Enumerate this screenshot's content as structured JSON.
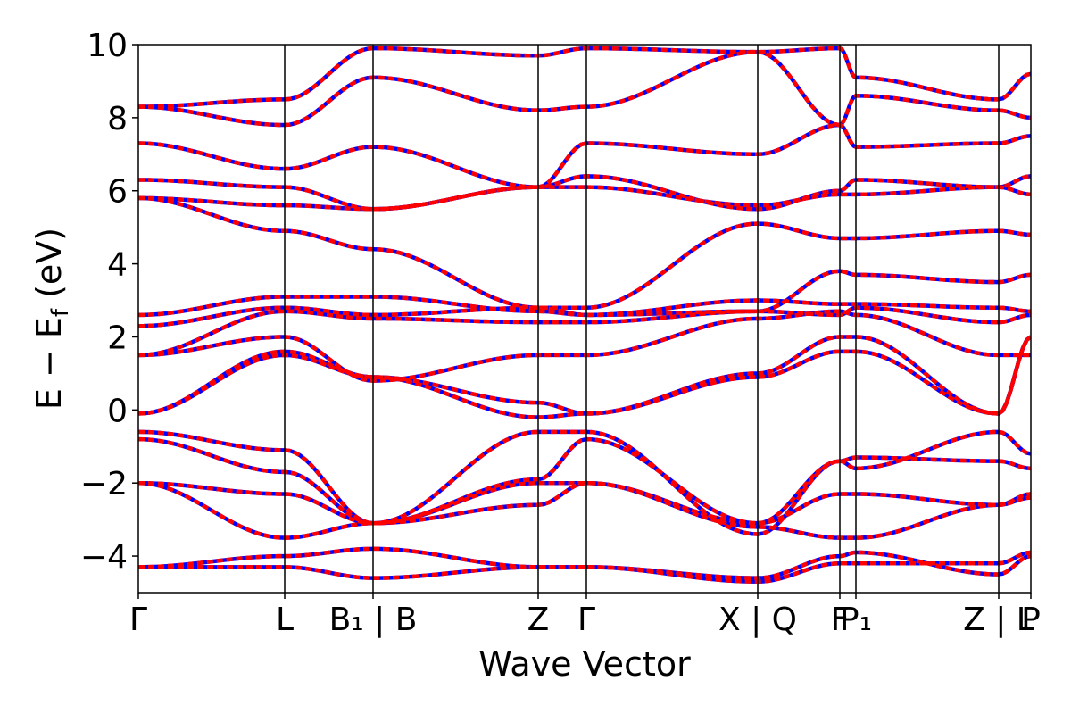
{
  "chart_data": {
    "type": "line",
    "title": "",
    "xlabel": "Wave Vector",
    "ylabel": "E − E",
    "ylabel_sub": "f",
    "ylabel_unit": " (eV)",
    "ylim": [
      -5,
      10
    ],
    "yticks": [
      {
        "value": -4,
        "label": "−4"
      },
      {
        "value": -2,
        "label": "−2"
      },
      {
        "value": 0,
        "label": "0"
      },
      {
        "value": 2,
        "label": "2"
      },
      {
        "value": 4,
        "label": "4"
      },
      {
        "value": 6,
        "label": "6"
      },
      {
        "value": 8,
        "label": "8"
      },
      {
        "value": 10,
        "label": "10"
      }
    ],
    "xlim": [
      0,
      1000
    ],
    "kpoints": [
      {
        "x": 0,
        "label": "Γ"
      },
      {
        "x": 164,
        "label": "L"
      },
      {
        "x": 263,
        "label": "B₁ | B"
      },
      {
        "x": 448,
        "label": "Z"
      },
      {
        "x": 502,
        "label": "Γ"
      },
      {
        "x": 694,
        "label": "X | Q"
      },
      {
        "x": 786,
        "label": "F"
      },
      {
        "x": 804,
        "label": "P₁"
      },
      {
        "x": 964,
        "label": "Z | L"
      },
      {
        "x": 1000,
        "label": "P"
      }
    ],
    "x_label_bounds": [
      0,
      1000
    ],
    "series": [
      {
        "color": "#0000ff",
        "style": "solid",
        "bands": [
          [
            [
              0,
              -4.3
            ],
            [
              164,
              -4.3
            ],
            [
              263,
              -4.6
            ],
            [
              448,
              -4.3
            ],
            [
              502,
              -4.3
            ],
            [
              694,
              -4.7
            ],
            [
              786,
              -4.2
            ],
            [
              804,
              -4.2
            ],
            [
              964,
              -4.2
            ],
            [
              1000,
              -3.9
            ]
          ],
          [
            [
              0,
              -4.3
            ],
            [
              164,
              -4.0
            ],
            [
              263,
              -3.8
            ],
            [
              448,
              -4.3
            ],
            [
              502,
              -4.3
            ],
            [
              694,
              -4.6
            ],
            [
              786,
              -4.0
            ],
            [
              804,
              -3.9
            ],
            [
              964,
              -4.5
            ],
            [
              1000,
              -4.0
            ]
          ],
          [
            [
              0,
              -2.0
            ],
            [
              164,
              -2.3
            ],
            [
              263,
              -3.1
            ],
            [
              448,
              -2.0
            ],
            [
              502,
              -2.0
            ],
            [
              694,
              -3.1
            ],
            [
              786,
              -2.3
            ],
            [
              804,
              -2.3
            ],
            [
              964,
              -2.6
            ],
            [
              1000,
              -2.4
            ]
          ],
          [
            [
              0,
              -2.0
            ],
            [
              164,
              -3.5
            ],
            [
              263,
              -3.1
            ],
            [
              448,
              -2.6
            ],
            [
              502,
              -2.0
            ],
            [
              694,
              -3.2
            ],
            [
              786,
              -3.5
            ],
            [
              804,
              -3.5
            ],
            [
              964,
              -2.6
            ],
            [
              1000,
              -2.3
            ]
          ],
          [
            [
              0,
              -0.8
            ],
            [
              164,
              -1.7
            ],
            [
              263,
              -3.1
            ],
            [
              448,
              -1.9
            ],
            [
              502,
              -0.8
            ],
            [
              694,
              -3.1
            ],
            [
              786,
              -1.4
            ],
            [
              804,
              -1.3
            ],
            [
              964,
              -1.4
            ],
            [
              1000,
              -1.6
            ]
          ],
          [
            [
              0,
              -0.6
            ],
            [
              164,
              -1.1
            ],
            [
              263,
              -3.1
            ],
            [
              448,
              -0.6
            ],
            [
              502,
              -0.6
            ],
            [
              694,
              -3.4
            ],
            [
              786,
              -1.4
            ],
            [
              804,
              -1.6
            ],
            [
              964,
              -0.6
            ],
            [
              1000,
              -1.2
            ]
          ],
          [
            [
              0,
              -0.1
            ],
            [
              164,
              1.5
            ],
            [
              263,
              0.9
            ],
            [
              448,
              -0.2
            ],
            [
              502,
              -0.1
            ],
            [
              694,
              0.9
            ],
            [
              786,
              1.6
            ],
            [
              804,
              1.6
            ],
            [
              964,
              -0.1
            ],
            [
              1000,
              2.0
            ]
          ],
          [
            [
              0,
              -0.1
            ],
            [
              164,
              1.6
            ],
            [
              263,
              0.9
            ],
            [
              448,
              0.2
            ],
            [
              502,
              -0.1
            ],
            [
              694,
              1.0
            ],
            [
              786,
              2.0
            ],
            [
              804,
              2.0
            ],
            [
              964,
              -0.1
            ],
            [
              1000,
              2.0
            ]
          ],
          [
            [
              0,
              1.5
            ],
            [
              164,
              2.0
            ],
            [
              263,
              0.8
            ],
            [
              448,
              1.5
            ],
            [
              502,
              1.5
            ],
            [
              694,
              2.5
            ],
            [
              786,
              2.7
            ],
            [
              804,
              2.6
            ],
            [
              964,
              1.5
            ],
            [
              1000,
              1.5
            ]
          ],
          [
            [
              0,
              1.5
            ],
            [
              164,
              2.7
            ],
            [
              263,
              2.5
            ],
            [
              448,
              2.4
            ],
            [
              502,
              2.4
            ],
            [
              694,
              2.7
            ],
            [
              786,
              2.6
            ],
            [
              804,
              2.8
            ],
            [
              964,
              2.4
            ],
            [
              1000,
              2.6
            ]
          ],
          [
            [
              0,
              2.3
            ],
            [
              164,
              2.8
            ],
            [
              263,
              2.6
            ],
            [
              448,
              2.8
            ],
            [
              502,
              2.6
            ],
            [
              694,
              3.0
            ],
            [
              786,
              2.9
            ],
            [
              804,
              2.9
            ],
            [
              964,
              2.8
            ],
            [
              1000,
              2.7
            ]
          ],
          [
            [
              0,
              2.6
            ],
            [
              164,
              3.1
            ],
            [
              263,
              3.1
            ],
            [
              448,
              2.7
            ],
            [
              502,
              2.6
            ],
            [
              694,
              2.7
            ],
            [
              786,
              3.8
            ],
            [
              804,
              3.7
            ],
            [
              964,
              3.5
            ],
            [
              1000,
              3.7
            ]
          ],
          [
            [
              0,
              5.8
            ],
            [
              164,
              4.9
            ],
            [
              263,
              4.4
            ],
            [
              448,
              2.8
            ],
            [
              502,
              2.8
            ],
            [
              694,
              5.1
            ],
            [
              786,
              4.7
            ],
            [
              804,
              4.7
            ],
            [
              964,
              4.9
            ],
            [
              1000,
              4.8
            ]
          ],
          [
            [
              0,
              5.8
            ],
            [
              164,
              5.6
            ],
            [
              263,
              5.5
            ],
            [
              448,
              6.1
            ],
            [
              502,
              6.1
            ],
            [
              694,
              5.6
            ],
            [
              786,
              5.9
            ],
            [
              804,
              5.9
            ],
            [
              964,
              6.1
            ],
            [
              1000,
              5.9
            ]
          ],
          [
            [
              0,
              6.3
            ],
            [
              164,
              6.1
            ],
            [
              263,
              5.5
            ],
            [
              448,
              6.1
            ],
            [
              502,
              6.4
            ],
            [
              694,
              5.5
            ],
            [
              786,
              6.0
            ],
            [
              804,
              6.3
            ],
            [
              964,
              6.1
            ],
            [
              1000,
              6.4
            ]
          ],
          [
            [
              0,
              7.3
            ],
            [
              164,
              6.6
            ],
            [
              263,
              7.2
            ],
            [
              448,
              6.1
            ],
            [
              502,
              7.3
            ],
            [
              694,
              7.0
            ],
            [
              786,
              7.8
            ],
            [
              804,
              7.2
            ],
            [
              964,
              7.3
            ],
            [
              1000,
              7.5
            ]
          ],
          [
            [
              0,
              8.3
            ],
            [
              164,
              7.8
            ],
            [
              263,
              9.1
            ],
            [
              448,
              8.2
            ],
            [
              502,
              8.3
            ],
            [
              694,
              9.8
            ],
            [
              786,
              7.8
            ],
            [
              804,
              8.6
            ],
            [
              964,
              8.2
            ],
            [
              1000,
              8.0
            ]
          ],
          [
            [
              0,
              8.3
            ],
            [
              164,
              8.5
            ],
            [
              263,
              9.9
            ],
            [
              448,
              9.7
            ],
            [
              502,
              9.9
            ],
            [
              694,
              9.8
            ],
            [
              786,
              9.9
            ],
            [
              804,
              9.1
            ],
            [
              964,
              8.5
            ],
            [
              1000,
              9.2
            ]
          ]
        ]
      },
      {
        "color": "#ff0000",
        "style": "dashed",
        "bands": "same"
      }
    ]
  }
}
